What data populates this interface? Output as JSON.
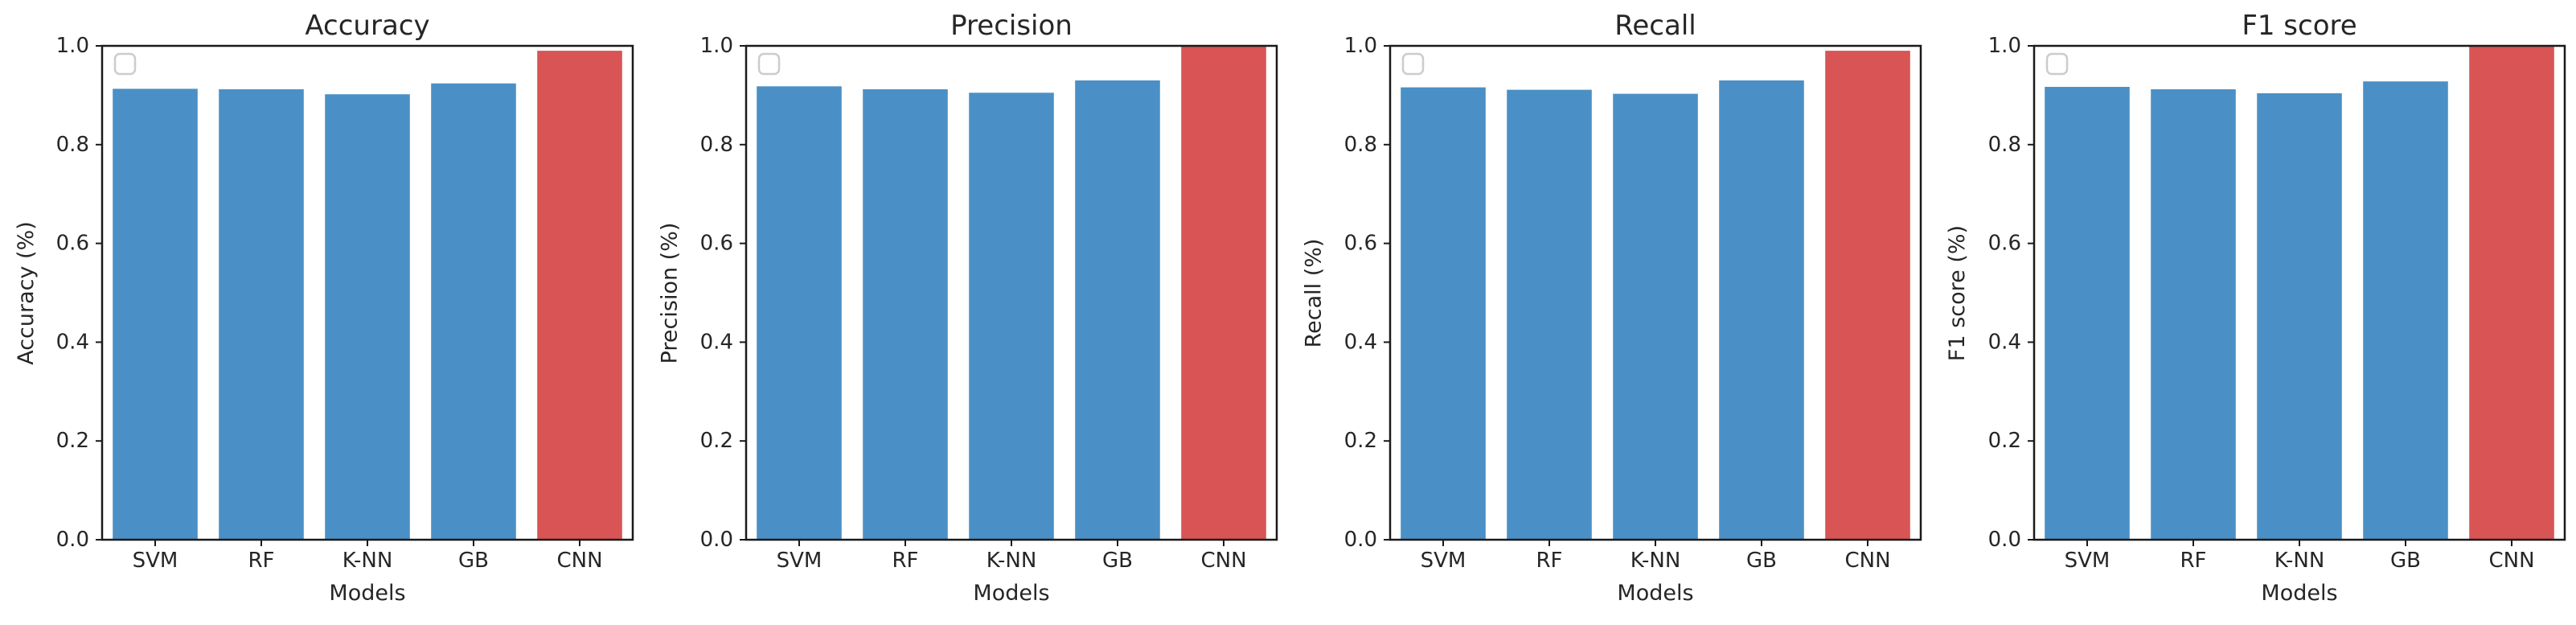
{
  "figure": {
    "background": "#ffffff",
    "text_color": "#262626",
    "spine_color": "#1a1a1a"
  },
  "palette": {
    "default_bar": "#4a90c6",
    "highlight_bar": "#d95454"
  },
  "chart_data": [
    {
      "type": "bar",
      "title": "Accuracy",
      "xlabel": "Models",
      "ylabel": "Accuracy (%)",
      "categories": [
        "SVM",
        "RF",
        "K-NN",
        "GB",
        "CNN"
      ],
      "values": [
        0.913,
        0.912,
        0.902,
        0.924,
        0.99
      ],
      "bar_colors": [
        "#4a90c6",
        "#4a90c6",
        "#4a90c6",
        "#4a90c6",
        "#d95454"
      ],
      "ylim": [
        0.0,
        1.0
      ],
      "yticks": [
        "0.0",
        "0.2",
        "0.4",
        "0.6",
        "0.8",
        "1.0"
      ],
      "grid": false,
      "legend": "empty frame, upper left"
    },
    {
      "type": "bar",
      "title": "Precision",
      "xlabel": "Models",
      "ylabel": "Precision (%)",
      "categories": [
        "SVM",
        "RF",
        "K-NN",
        "GB",
        "CNN"
      ],
      "values": [
        0.918,
        0.912,
        0.905,
        0.93,
        1.0
      ],
      "bar_colors": [
        "#4a90c6",
        "#4a90c6",
        "#4a90c6",
        "#4a90c6",
        "#d95454"
      ],
      "ylim": [
        0.0,
        1.0
      ],
      "yticks": [
        "0.0",
        "0.2",
        "0.4",
        "0.6",
        "0.8",
        "1.0"
      ],
      "grid": false,
      "legend": "empty frame, upper left"
    },
    {
      "type": "bar",
      "title": "Recall",
      "xlabel": "Models",
      "ylabel": "Recall (%)",
      "categories": [
        "SVM",
        "RF",
        "K-NN",
        "GB",
        "CNN"
      ],
      "values": [
        0.916,
        0.911,
        0.903,
        0.93,
        0.99
      ],
      "bar_colors": [
        "#4a90c6",
        "#4a90c6",
        "#4a90c6",
        "#4a90c6",
        "#d95454"
      ],
      "ylim": [
        0.0,
        1.0
      ],
      "yticks": [
        "0.0",
        "0.2",
        "0.4",
        "0.6",
        "0.8",
        "1.0"
      ],
      "grid": false,
      "legend": "empty frame, upper left"
    },
    {
      "type": "bar",
      "title": "F1 score",
      "xlabel": "Models",
      "ylabel": "F1 score (%)",
      "categories": [
        "SVM",
        "RF",
        "K-NN",
        "GB",
        "CNN"
      ],
      "values": [
        0.917,
        0.912,
        0.904,
        0.928,
        1.0
      ],
      "bar_colors": [
        "#4a90c6",
        "#4a90c6",
        "#4a90c6",
        "#4a90c6",
        "#d95454"
      ],
      "ylim": [
        0.0,
        1.0
      ],
      "yticks": [
        "0.0",
        "0.2",
        "0.4",
        "0.6",
        "0.8",
        "1.0"
      ],
      "grid": false,
      "legend": "empty frame, upper left"
    }
  ]
}
